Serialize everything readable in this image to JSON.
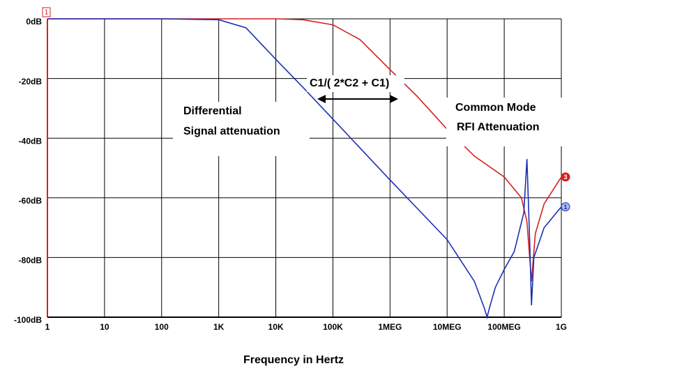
{
  "chart_data": {
    "type": "line",
    "x_label": "Frequency in Hertz",
    "xscale": "log",
    "grid": true,
    "xlim": [
      1,
      1000000000
    ],
    "ylim": [
      -100,
      0
    ],
    "xticks": [
      1,
      10,
      100,
      {
        "value": 1000,
        "label": "1K"
      },
      {
        "value": 10000,
        "label": "10K"
      },
      {
        "value": 100000,
        "label": "100K"
      },
      {
        "value": 1000000,
        "label": "1MEG"
      },
      {
        "value": 10000000,
        "label": "10MEG"
      },
      {
        "value": 100000000,
        "label": "100MEG"
      },
      {
        "value": 1000000000,
        "label": "1G"
      }
    ],
    "yticks": [
      {
        "value": 0,
        "label": "0dB"
      },
      {
        "value": -20,
        "label": "-20dB"
      },
      {
        "value": -40,
        "label": "-40dB"
      },
      {
        "value": -60,
        "label": "-60dB"
      },
      {
        "value": -80,
        "label": "-80dB"
      },
      {
        "value": -100,
        "label": "-100dB"
      }
    ],
    "start_marker": "1",
    "series": [
      {
        "name": "3",
        "color": "#d42020",
        "x": [
          1,
          1000,
          10000,
          30000,
          100000,
          300000,
          1000000,
          3000000,
          10000000,
          30000000,
          100000000,
          200000000,
          250000000,
          300000000,
          350000000,
          500000000,
          1000000000
        ],
        "values": [
          0,
          0,
          0,
          -0.3,
          -2,
          -7,
          -17,
          -26,
          -37,
          -46,
          -53,
          -60,
          -68,
          -88,
          -72,
          -62,
          -53
        ]
      },
      {
        "name": "1",
        "color": "#1c2fb0",
        "x": [
          1,
          100,
          1000,
          3000,
          10000,
          30000,
          100000,
          1000000,
          10000000,
          30000000,
          45000000,
          50000000,
          55000000,
          70000000,
          100000000,
          150000000,
          220000000,
          250000000,
          280000000,
          300000000,
          330000000,
          500000000,
          1000000000
        ],
        "values": [
          0,
          0,
          -0.3,
          -3,
          -13.6,
          -23,
          -33.6,
          -54,
          -74,
          -88,
          -97,
          -100,
          -97,
          -90,
          -84,
          -78,
          -65,
          -47,
          -75,
          -96,
          -80,
          -70,
          -63
        ]
      }
    ],
    "annotations": [
      "C1/( 2*C2 + C1)",
      "Differential",
      "Signal attenuation",
      "Common Mode",
      "RFI Attenuation"
    ]
  }
}
